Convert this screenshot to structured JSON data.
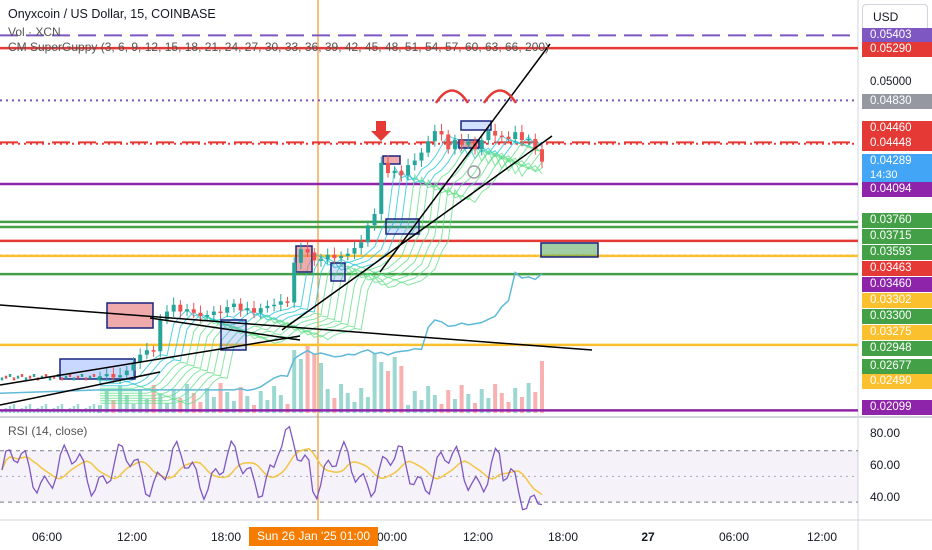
{
  "header": {
    "title": "Onyxcoin / US Dollar, 15, COINBASE",
    "volume_label": "Vol · XCN",
    "indicator_label": "CM SuperGuppy (3, 6, 9, 12, 15, 18, 21, 24, 27, 30, 33, 36, 39, 42, 45, 48, 51, 54, 57, 60, 63, 66, 200)",
    "currency": "USD"
  },
  "rsi": {
    "label": "RSI (14, close)",
    "levels": [
      "80.00",
      "60.00",
      "40.00"
    ],
    "ylim": [
      20,
      90
    ]
  },
  "time_axis": {
    "labels": [
      "06:00",
      "12:00",
      "18:00",
      "00:00",
      "12:00",
      "18:00",
      "27",
      "06:00",
      "12:00"
    ],
    "cursor_label": "Sun 26 Jan '25   01:00"
  },
  "price_axis": {
    "plain_labels": [
      "0.05000"
    ],
    "tags": [
      {
        "text": "0.05403",
        "color": "#7e57c2"
      },
      {
        "text": "0.05290",
        "color": "#e53935"
      },
      {
        "text": "0.04830",
        "color": "#9598a1"
      },
      {
        "text": "0.04460",
        "color": "#e53935"
      },
      {
        "text": "0.04448",
        "color": "#e53935"
      },
      {
        "text": "0.04289",
        "color": "#42a5f5"
      },
      {
        "text": "0.04094",
        "color": "#8e24aa"
      },
      {
        "text": "0.03760",
        "color": "#43a047"
      },
      {
        "text": "0.03715",
        "color": "#43a047"
      },
      {
        "text": "0.03593",
        "color": "#43a047"
      },
      {
        "text": "0.03463",
        "color": "#e53935"
      },
      {
        "text": "0.03460",
        "color": "#8e24aa"
      },
      {
        "text": "0.03302",
        "color": "#fbc02d"
      },
      {
        "text": "0.03300",
        "color": "#43a047"
      },
      {
        "text": "0.03275",
        "color": "#fbc02d"
      },
      {
        "text": "0.02948",
        "color": "#43a047"
      },
      {
        "text": "0.02677",
        "color": "#43a047"
      },
      {
        "text": "0.02490",
        "color": "#fbc02d"
      },
      {
        "text": "0.02099",
        "color": "#8e24aa"
      }
    ],
    "countdown": "14:30"
  },
  "chart_data": {
    "type": "candlestick",
    "symbol": "XCN/USD",
    "interval": "15",
    "ylim": [
      0.0205,
      0.0545
    ],
    "close_series": [
      0.024,
      0.0242,
      0.0239,
      0.0241,
      0.0245,
      0.0252,
      0.0259,
      0.0263,
      0.0262,
      0.029,
      0.0297,
      0.0303,
      0.0297,
      0.0299,
      0.0296,
      0.0293,
      0.0294,
      0.0297,
      0.0296,
      0.0301,
      0.0304,
      0.0298,
      0.03,
      0.0296,
      0.03,
      0.0302,
      0.0303,
      0.0306,
      0.0305,
      0.034,
      0.0352,
      0.0349,
      0.0342,
      0.0343,
      0.0347,
      0.0344,
      0.0346,
      0.0348,
      0.0353,
      0.0358,
      0.0373,
      0.0383,
      0.0428,
      0.0419,
      0.0421,
      0.0417,
      0.0426,
      0.043,
      0.0437,
      0.0447,
      0.0456,
      0.0453,
      0.044,
      0.0448,
      0.0444,
      0.0447,
      0.044,
      0.0448,
      0.0456,
      0.0452,
      0.0451,
      0.0449,
      0.0455,
      0.0448,
      0.0449,
      0.044,
      0.0429
    ],
    "horizontal_levels": [
      {
        "price": 0.05403,
        "color": "#7e57c2",
        "style": "dashed"
      },
      {
        "price": 0.0529,
        "color": "#e53935",
        "style": "solid"
      },
      {
        "price": 0.0483,
        "color": "#7e57c2",
        "style": "dotted"
      },
      {
        "price": 0.0446,
        "color": "#e53935",
        "style": "dashed"
      },
      {
        "price": 0.04448,
        "color": "#e53935",
        "style": "dotted"
      },
      {
        "price": 0.04094,
        "color": "#8e24aa",
        "style": "solid"
      },
      {
        "price": 0.0376,
        "color": "#43a047",
        "style": "solid"
      },
      {
        "price": 0.03715,
        "color": "#43a047",
        "style": "solid"
      },
      {
        "price": 0.03593,
        "color": "#e53935",
        "style": "solid"
      },
      {
        "price": 0.03463,
        "color": "#7e57c2",
        "style": "dotted"
      },
      {
        "price": 0.0346,
        "color": "#fbc02d",
        "style": "solid"
      },
      {
        "price": 0.033,
        "color": "#43a047",
        "style": "solid"
      },
      {
        "price": 0.02677,
        "color": "#fbc02d",
        "style": "solid"
      },
      {
        "price": 0.02099,
        "color": "#8e24aa",
        "style": "solid"
      }
    ]
  }
}
